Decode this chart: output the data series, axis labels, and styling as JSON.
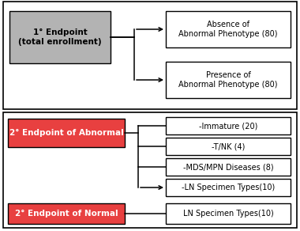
{
  "primary_box_color": "#b3b3b3",
  "secondary_red_color": "#e84040",
  "white_box_color": "#ffffff",
  "border_color": "#000000",
  "primary_label": "1° Endpoint\n(total enrollment)",
  "secondary_abnormal_label": "2° Endpoint of Abnormal",
  "secondary_normal_label": "2° Endpoint of Normal",
  "top_right_boxes": [
    "Absence of\nAbnormal Phenotype (80)",
    "Presence of\nAbnormal Phenotype (80)"
  ],
  "bottom_right_boxes": [
    "-Immature (20)",
    "-T/NK (4)",
    "-MDS/MPN Diseases (8)",
    "-LN Specimen Types(10)"
  ],
  "normal_right_box": "LN Specimen Types(10)",
  "font_size_main": 7.5,
  "font_size_small": 7.0,
  "fig_width": 3.8,
  "fig_height": 2.92,
  "dpi": 100
}
